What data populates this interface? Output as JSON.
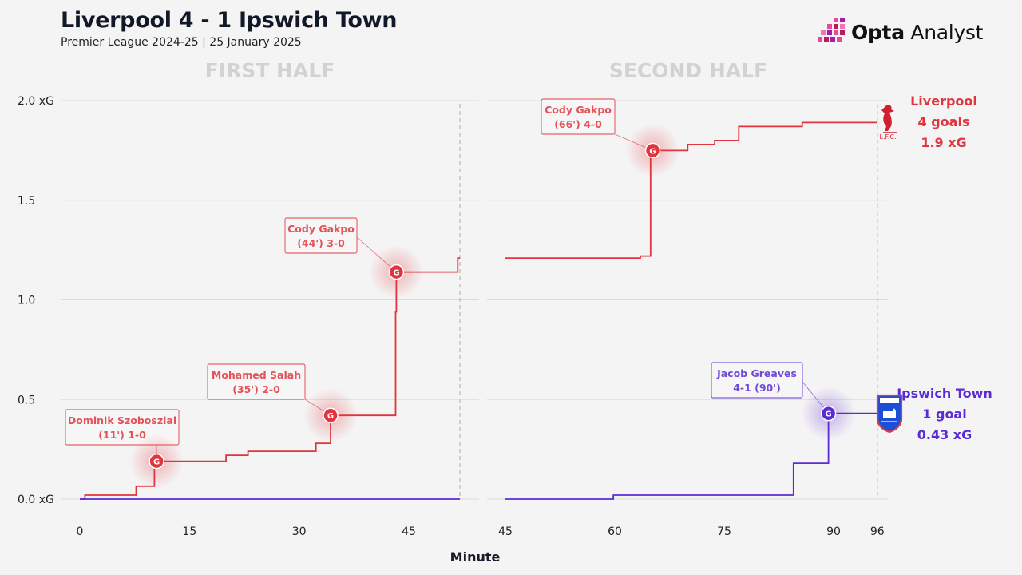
{
  "header": {
    "title": "Liverpool 4 - 1 Ipswich Town",
    "subtitle": "Premier League 2024-25 | 25 January 2025",
    "brand_bold": "Opta",
    "brand_rest": " Analyst"
  },
  "chart_data": {
    "type": "line",
    "title": "Liverpool 4 - 1 Ipswich Town",
    "subtitle": "Premier League 2024-25 | 25 January 2025",
    "xlabel": "Minute",
    "ylabel": "",
    "ylim": [
      0,
      2.0
    ],
    "y_ticks": [
      "0.0 xG",
      "0.5",
      "1.0",
      "1.5",
      "2.0 xG"
    ],
    "y_tick_values": [
      0,
      0.5,
      1.0,
      1.5,
      2.0
    ],
    "halves": [
      {
        "label": "FIRST HALF",
        "xlim": [
          -1,
          52
        ],
        "x_ticks": [
          "0",
          "15",
          "30",
          "45"
        ],
        "x_tick_values": [
          0,
          15,
          30,
          45
        ],
        "end_marker": 52
      },
      {
        "label": "SECOND HALF",
        "xlim": [
          45,
          97.3
        ],
        "x_ticks": [
          "45",
          "60",
          "75",
          "90",
          "96"
        ],
        "x_tick_values": [
          45,
          60,
          75,
          90,
          96
        ],
        "end_marker": 96
      }
    ],
    "grid": true,
    "series": [
      {
        "name": "Liverpool",
        "color": "#e0353e",
        "steps": [
          [
            [
              0,
              0
            ],
            [
              0.7,
              0.02
            ],
            [
              7.7,
              0.065
            ],
            [
              10.2,
              0.19
            ],
            [
              20,
              0.22
            ],
            [
              23,
              0.24
            ],
            [
              32.3,
              0.28
            ],
            [
              34.3,
              0.42
            ],
            [
              43.2,
              0.94
            ],
            [
              43.3,
              1.14
            ],
            [
              51.7,
              1.21
            ],
            [
              52,
              1.21
            ]
          ],
          [
            [
              45,
              1.21
            ],
            [
              63.5,
              1.22
            ],
            [
              64.9,
              1.75
            ],
            [
              70,
              1.78
            ],
            [
              73.7,
              1.8
            ],
            [
              77,
              1.87
            ],
            [
              85.7,
              1.89
            ],
            [
              96,
              1.89
            ]
          ]
        ],
        "goals": [
          {
            "half": 0,
            "minute": 10.5,
            "xg": 0.19,
            "label": [
              "Dominik Szoboszlai",
              "(11') 1-0"
            ]
          },
          {
            "half": 0,
            "minute": 34.3,
            "xg": 0.42,
            "label": [
              "Mohamed Salah",
              "(35') 2-0"
            ]
          },
          {
            "half": 0,
            "minute": 43.3,
            "xg": 1.14,
            "label": [
              "Cody Gakpo",
              "(44') 3-0"
            ]
          },
          {
            "half": 1,
            "minute": 65.2,
            "xg": 1.75,
            "label": [
              "Cody Gakpo",
              "(66') 4-0"
            ]
          }
        ],
        "summary": [
          "Liverpool",
          "4 goals",
          "1.9 xG"
        ]
      },
      {
        "name": "Ipswich Town",
        "color": "#5b2bd5",
        "steps": [
          [
            [
              0,
              0
            ],
            [
              52,
              0
            ]
          ],
          [
            [
              45,
              0
            ],
            [
              59.8,
              0.02
            ],
            [
              84.5,
              0.18
            ],
            [
              89.3,
              0.43
            ],
            [
              96,
              0.43
            ]
          ]
        ],
        "goals": [
          {
            "half": 1,
            "minute": 89.3,
            "xg": 0.43,
            "label": [
              "Jacob Greaves",
              "4-1 (90')"
            ]
          }
        ],
        "summary": [
          "Ipswich Town",
          "1 goal",
          "0.43 xG"
        ]
      }
    ],
    "goal_marker_text": "G",
    "crest_text": "L.F.C."
  }
}
